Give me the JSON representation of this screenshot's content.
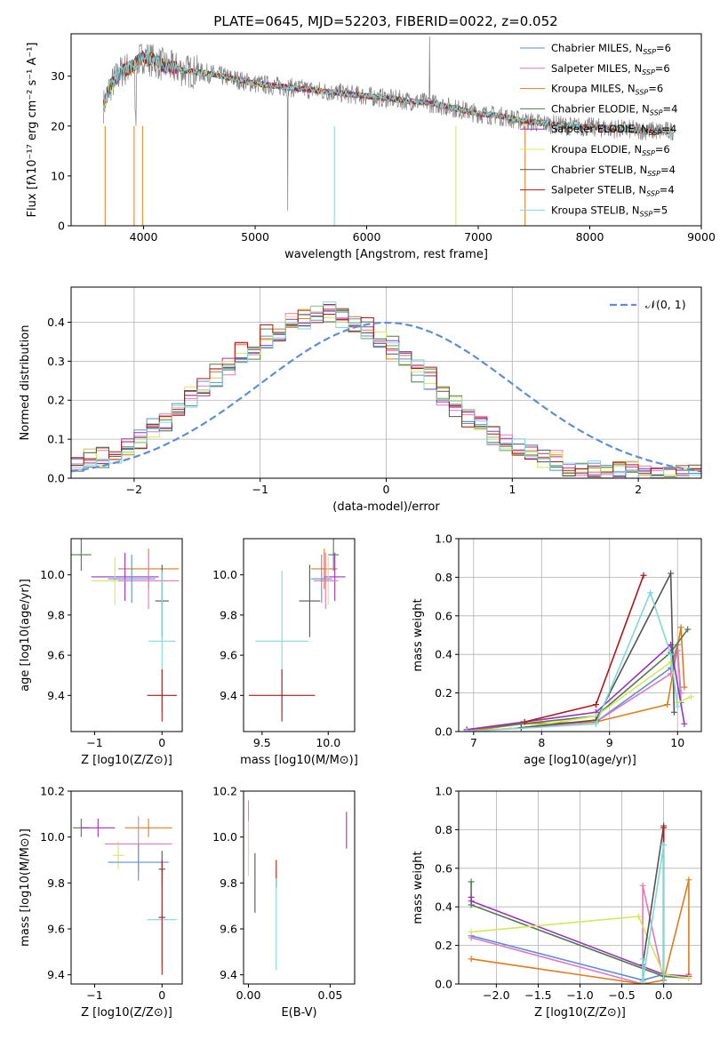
{
  "figure": {
    "title": "PLATE=0645, MJD=52203, FIBERID=0022, z=0.052"
  },
  "chart_data": [
    {
      "id": "spectrum",
      "type": "line",
      "xlabel": "wavelength [Angstrom, rest frame]",
      "ylabel": "Flux [fλ10⁻¹⁷ erg cm⁻² s⁻¹ A⁻¹]",
      "xlim": [
        3350,
        9000
      ],
      "ylim": [
        0,
        38.5
      ],
      "xticks": [
        4000,
        5000,
        6000,
        7000,
        8000,
        9000
      ],
      "yticks": [
        0,
        10,
        20,
        30
      ],
      "legend": "top-right",
      "continuum": {
        "x": [
          3640,
          3700,
          3800,
          3900,
          4000,
          4100,
          4200,
          4400,
          4600,
          4800,
          5000,
          5200,
          5400,
          5600,
          5800,
          6000,
          6200,
          6400,
          6600,
          6800,
          7000,
          7200,
          7400,
          7600,
          7800,
          8000,
          8200,
          8400,
          8600,
          8750
        ],
        "y": [
          24,
          28,
          31,
          32,
          34,
          33,
          32,
          31,
          30.5,
          29.5,
          28.5,
          28,
          27.5,
          27,
          26.5,
          26,
          25.5,
          25,
          24.5,
          23.5,
          22.5,
          22,
          21,
          20.5,
          20,
          19.8,
          19.5,
          19.2,
          19,
          19
        ]
      },
      "series": [
        {
          "name": "Chabrier MILES, N_SSP=6",
          "color": "#5b8fd9"
        },
        {
          "name": "Salpeter MILES, N_SSP=6",
          "color": "#e377c2"
        },
        {
          "name": "Kroupa MILES, N_SSP=6",
          "color": "#e07b1a"
        },
        {
          "name": "Chabrier ELODIE, N_SSP=4",
          "color": "#4d7d4d"
        },
        {
          "name": "Salpeter ELODIE, N_SSP=4",
          "color": "#9b30c0"
        },
        {
          "name": "Kroupa ELODIE, N_SSP=6",
          "color": "#d4e85a"
        },
        {
          "name": "Chabrier STELIB, N_SSP=4",
          "color": "#555555"
        },
        {
          "name": "Salpeter STELIB, N_SSP=4",
          "color": "#b01818"
        },
        {
          "name": "Kroupa STELIB, N_SSP=5",
          "color": "#7fd9d9"
        }
      ]
    },
    {
      "id": "residuals",
      "type": "histogram",
      "xlabel": "(data-model)/error",
      "ylabel": "Normed distribution",
      "xlim": [
        -2.5,
        2.5
      ],
      "ylim": [
        0,
        0.49
      ],
      "xticks": [
        -2,
        -1,
        0,
        1,
        2
      ],
      "yticks": [
        0.0,
        0.1,
        0.2,
        0.3,
        0.4
      ],
      "grid": true,
      "legend": "top-right",
      "reference": {
        "name": "𝒩(0, 1)",
        "color": "#5b8fd9",
        "mean": 0,
        "sigma": 1
      },
      "bin_edges_start": -2.5,
      "bin_width": 0.1,
      "hist": [
        [
          0.04,
          0.05,
          0.06,
          0.06,
          0.08,
          0.1,
          0.13,
          0.14,
          0.17,
          0.2,
          0.23,
          0.26,
          0.3,
          0.32,
          0.34,
          0.35,
          0.37,
          0.39,
          0.4,
          0.42,
          0.43,
          0.41,
          0.4,
          0.38,
          0.36,
          0.33,
          0.3,
          0.28,
          0.25,
          0.22,
          0.18,
          0.16,
          0.13,
          0.11,
          0.09,
          0.08,
          0.06,
          0.05,
          0.04,
          0.03,
          0.03,
          0.02,
          0.02,
          0.02,
          0.02,
          0.01,
          0.01,
          0.01,
          0.01,
          0.01
        ],
        [
          0.03,
          0.05,
          0.05,
          0.07,
          0.08,
          0.09,
          0.12,
          0.15,
          0.16,
          0.21,
          0.24,
          0.27,
          0.29,
          0.33,
          0.33,
          0.37,
          0.36,
          0.4,
          0.41,
          0.41,
          0.42,
          0.42,
          0.39,
          0.39,
          0.35,
          0.34,
          0.31,
          0.27,
          0.26,
          0.21,
          0.19,
          0.15,
          0.14,
          0.1,
          0.1,
          0.07,
          0.07,
          0.05,
          0.05,
          0.03,
          0.03,
          0.03,
          0.02,
          0.02,
          0.02,
          0.01,
          0.01,
          0.01,
          0.01,
          0.01
        ]
      ]
    },
    {
      "id": "age_vs_Z",
      "type": "errorbar",
      "xlabel": "Z [log10(Z/Z⊙)]",
      "ylabel": "age  [log10(age/yr)]",
      "xlim": [
        -1.35,
        0.3
      ],
      "ylim": [
        9.22,
        10.18
      ],
      "xticks": [
        -1,
        0
      ],
      "yticks": [
        9.4,
        9.6,
        9.8,
        10.0
      ],
      "points": [
        {
          "x": -1.2,
          "y": 10.1,
          "xerr": 0.15,
          "yerr": 0.08,
          "color": "#4d7d4d"
        },
        {
          "x": -0.2,
          "y": 10.03,
          "xerr": 0.45,
          "yerr": 0.1,
          "color": "#e07b1a"
        },
        {
          "x": -0.55,
          "y": 9.99,
          "xerr": 0.5,
          "yerr": 0.12,
          "color": "#9b30c0"
        },
        {
          "x": -0.7,
          "y": 9.97,
          "xerr": 0.35,
          "yerr": 0.12,
          "color": "#d4e85a"
        },
        {
          "x": -0.2,
          "y": 9.97,
          "xerr": 0.45,
          "yerr": 0.14,
          "color": "#e377c2"
        },
        {
          "x": -0.45,
          "y": 9.98,
          "xerr": 0.35,
          "yerr": 0.12,
          "color": "#5b8fd9"
        },
        {
          "x": 0,
          "y": 9.87,
          "xerr": 0.1,
          "yerr": 0.18,
          "color": "#555555"
        },
        {
          "x": 0,
          "y": 9.67,
          "xerr": 0.2,
          "yerr": 0.35,
          "color": "#7fd9d9"
        },
        {
          "x": 0,
          "y": 9.4,
          "xerr": 0.22,
          "yerr": 0.13,
          "color": "#b01818"
        }
      ]
    },
    {
      "id": "age_vs_mass",
      "type": "errorbar",
      "xlabel": "mass [log10(M/M⊙)]",
      "xlim": [
        9.36,
        10.2
      ],
      "ylim": [
        9.22,
        10.18
      ],
      "xticks": [
        9.5,
        10.0
      ],
      "yticks": [
        9.4,
        9.6,
        9.8,
        10.0
      ],
      "points": [
        {
          "x": 10.04,
          "y": 10.1,
          "xerr": 0.04,
          "yerr": 0.08,
          "color": "#4d7d4d"
        },
        {
          "x": 9.97,
          "y": 10.03,
          "xerr": 0.1,
          "yerr": 0.1,
          "color": "#e07b1a"
        },
        {
          "x": 10.05,
          "y": 9.99,
          "xerr": 0.08,
          "yerr": 0.12,
          "color": "#9b30c0"
        },
        {
          "x": 10.0,
          "y": 9.97,
          "xerr": 0.08,
          "yerr": 0.12,
          "color": "#d4e85a"
        },
        {
          "x": 9.98,
          "y": 9.97,
          "xerr": 0.09,
          "yerr": 0.14,
          "color": "#e377c2"
        },
        {
          "x": 9.95,
          "y": 9.98,
          "xerr": 0.08,
          "yerr": 0.12,
          "color": "#5b8fd9"
        },
        {
          "x": 9.86,
          "y": 9.87,
          "xerr": 0.08,
          "yerr": 0.18,
          "color": "#555555"
        },
        {
          "x": 9.65,
          "y": 9.67,
          "xerr": 0.2,
          "yerr": 0.35,
          "color": "#7fd9d9"
        },
        {
          "x": 9.65,
          "y": 9.4,
          "xerr": 0.25,
          "yerr": 0.13,
          "color": "#b01818"
        }
      ]
    },
    {
      "id": "weight_vs_age",
      "type": "line",
      "xlabel": "age  [log10(age/yr)]",
      "ylabel": "mass weight",
      "xlim": [
        6.78,
        10.35
      ],
      "ylim": [
        0,
        1.0
      ],
      "xticks": [
        7,
        8,
        9,
        10
      ],
      "yticks": [
        0.0,
        0.2,
        0.4,
        0.6,
        0.8,
        1.0
      ],
      "grid": true,
      "series": [
        {
          "name": "Chabrier MILES, N_SSP=6",
          "color": "#5b8fd9",
          "x": [
            6.9,
            7.7,
            8.8,
            9.9,
            10.0,
            10.05
          ],
          "y": [
            0.0,
            0.02,
            0.05,
            0.33,
            0.45,
            0.15
          ]
        },
        {
          "name": "Salpeter MILES, N_SSP=6",
          "color": "#e377c2",
          "x": [
            6.9,
            7.7,
            8.8,
            9.9,
            10.0,
            10.05
          ],
          "y": [
            0.0,
            0.02,
            0.05,
            0.3,
            0.42,
            0.2
          ]
        },
        {
          "name": "Kroupa MILES, N_SSP=6",
          "color": "#e07b1a",
          "x": [
            6.9,
            7.7,
            8.8,
            9.85,
            10.05,
            10.1
          ],
          "y": [
            0.0,
            0.04,
            0.05,
            0.14,
            0.54,
            0.23
          ]
        },
        {
          "name": "Chabrier ELODIE, N_SSP=4",
          "color": "#4d7d4d",
          "x": [
            6.9,
            8.8,
            9.9,
            10.15
          ],
          "y": [
            0.01,
            0.08,
            0.41,
            0.53
          ]
        },
        {
          "name": "Salpeter ELODIE, N_SSP=4",
          "color": "#9b30c0",
          "x": [
            6.9,
            8.8,
            9.9,
            10.1
          ],
          "y": [
            0.01,
            0.1,
            0.45,
            0.04
          ]
        },
        {
          "name": "Kroupa ELODIE, N_SSP=6",
          "color": "#d4e85a",
          "x": [
            6.9,
            7.7,
            8.8,
            9.9,
            10.0,
            10.2
          ],
          "y": [
            0.0,
            0.02,
            0.08,
            0.36,
            0.15,
            0.18
          ]
        },
        {
          "name": "Chabrier STELIB, N_SSP=4",
          "color": "#555555",
          "x": [
            7.7,
            8.8,
            9.9,
            9.95
          ],
          "y": [
            0.02,
            0.06,
            0.82,
            0.1
          ]
        },
        {
          "name": "Salpeter STELIB, N_SSP=4",
          "color": "#b01818",
          "x": [
            7.75,
            8.8,
            9.5
          ],
          "y": [
            0.05,
            0.14,
            0.81
          ]
        },
        {
          "name": "Kroupa STELIB, N_SSP=5",
          "color": "#7fd9d9",
          "x": [
            6.9,
            8.8,
            9.6,
            9.9,
            10.0
          ],
          "y": [
            0.0,
            0.04,
            0.72,
            0.4,
            0.13
          ]
        }
      ]
    },
    {
      "id": "mass_vs_Z",
      "type": "errorbar",
      "xlabel": "Z [log10(Z/Z⊙)]",
      "ylabel": "mass [log10(M/M⊙)]",
      "xlim": [
        -1.35,
        0.3
      ],
      "ylim": [
        9.36,
        10.2
      ],
      "xticks": [
        -1,
        0
      ],
      "yticks": [
        9.4,
        9.6,
        9.8,
        10.0,
        10.2
      ],
      "points": [
        {
          "x": -1.2,
          "y": 10.04,
          "xerr": 0.12,
          "yerr": 0.04,
          "color": "#4d7d4d"
        },
        {
          "x": -0.95,
          "y": 10.04,
          "xerr": 0.25,
          "yerr": 0.04,
          "color": "#9b30c0"
        },
        {
          "x": -0.65,
          "y": 9.92,
          "xerr": 0.08,
          "yerr": 0.06,
          "color": "#d4e85a"
        },
        {
          "x": -0.2,
          "y": 10.04,
          "xerr": 0.35,
          "yerr": 0.04,
          "color": "#e07b1a"
        },
        {
          "x": -0.35,
          "y": 9.97,
          "xerr": 0.5,
          "yerr": 0.12,
          "color": "#e377c2"
        },
        {
          "x": -0.35,
          "y": 9.89,
          "xerr": 0.45,
          "yerr": 0.08,
          "color": "#5b8fd9"
        },
        {
          "x": 0,
          "y": 9.86,
          "xerr": 0.05,
          "yerr": 0.08,
          "color": "#555555"
        },
        {
          "x": 0,
          "y": 9.64,
          "xerr": 0.22,
          "yerr": 0.2,
          "color": "#7fd9d9"
        },
        {
          "x": 0,
          "y": 9.65,
          "xerr": 0.05,
          "yerr": 0.25,
          "color": "#b01818"
        }
      ]
    },
    {
      "id": "mass_vs_EBV",
      "type": "errorbar",
      "xlabel": "E(B-V)",
      "xlim": [
        -0.003,
        0.065
      ],
      "ylim": [
        9.36,
        10.2
      ],
      "xticks": [
        0.0,
        0.05
      ],
      "yticks": [
        9.4,
        9.6,
        9.8,
        10.0,
        10.2
      ],
      "points": [
        {
          "x": 0.0,
          "y": 10.04,
          "xerr": 0,
          "yerr": 0.12,
          "color": "#e377c2"
        },
        {
          "x": 0.0,
          "y": 9.95,
          "xerr": 0,
          "yerr": 0.12,
          "color": "#d4e85a"
        },
        {
          "x": 0.004,
          "y": 9.8,
          "xerr": 0,
          "yerr": 0.13,
          "color": "#555555"
        },
        {
          "x": 0.017,
          "y": 9.84,
          "xerr": 0,
          "yerr": 0.06,
          "color": "#b01818"
        },
        {
          "x": 0.017,
          "y": 9.62,
          "xerr": 0,
          "yerr": 0.2,
          "color": "#7fd9d9"
        },
        {
          "x": 0.06,
          "y": 10.03,
          "xerr": 0,
          "yerr": 0.08,
          "color": "#9b30c0"
        }
      ]
    },
    {
      "id": "weight_vs_Z",
      "type": "line",
      "xlabel": "Z [log10(Z/Z⊙)]",
      "ylabel": "mass weight",
      "xlim": [
        -2.45,
        0.45
      ],
      "ylim": [
        0,
        1.0
      ],
      "xticks": [
        -2.0,
        -1.5,
        -1.0,
        -0.5,
        0.0
      ],
      "yticks": [
        0.0,
        0.2,
        0.4,
        0.6,
        0.8,
        1.0
      ],
      "grid": true,
      "series": [
        {
          "name": "Chabrier MILES, N_SSP=6",
          "color": "#5b8fd9",
          "x": [
            -2.3,
            -0.25,
            0.0
          ],
          "y": [
            0.25,
            0.02,
            0.05
          ]
        },
        {
          "name": "Salpeter MILES, N_SSP=6",
          "color": "#e377c2",
          "x": [
            -2.3,
            -0.25,
            -0.25,
            0.0
          ],
          "y": [
            0.24,
            0.0,
            0.51,
            0.02
          ]
        },
        {
          "name": "Kroupa MILES, N_SSP=6",
          "color": "#e07b1a",
          "x": [
            -2.3,
            -0.25,
            0.0,
            0.3,
            0.3
          ],
          "y": [
            0.13,
            0.0,
            0.02,
            0.54,
            0.05
          ]
        },
        {
          "name": "Chabrier ELODIE, N_SSP=4",
          "color": "#4d7d4d",
          "x": [
            -2.3,
            -2.3,
            0.0,
            0.3
          ],
          "y": [
            0.53,
            0.41,
            0.04,
            0.03
          ]
        },
        {
          "name": "Salpeter ELODIE, N_SSP=4",
          "color": "#9b30c0",
          "x": [
            -2.3,
            -2.3,
            0.0,
            0.3
          ],
          "y": [
            0.45,
            0.43,
            0.05,
            0.04
          ]
        },
        {
          "name": "Kroupa ELODIE, N_SSP=6",
          "color": "#d4e85a",
          "x": [
            -2.3,
            -0.3,
            0.0,
            0.3
          ],
          "y": [
            0.27,
            0.35,
            0.05,
            0.03
          ]
        },
        {
          "name": "Chabrier STELIB, N_SSP=4",
          "color": "#555555",
          "x": [
            -0.25,
            0.0,
            0.0
          ],
          "y": [
            0.1,
            0.82,
            0.0
          ]
        },
        {
          "name": "Salpeter STELIB, N_SSP=4",
          "color": "#b01818",
          "x": [
            0.0,
            0.0
          ],
          "y": [
            0.81,
            0.0
          ]
        },
        {
          "name": "Kroupa STELIB, N_SSP=5",
          "color": "#7fd9d9",
          "x": [
            -0.25,
            -0.25,
            0.0,
            0.0
          ],
          "y": [
            0.13,
            0.01,
            0.72,
            0.0
          ]
        }
      ]
    }
  ]
}
